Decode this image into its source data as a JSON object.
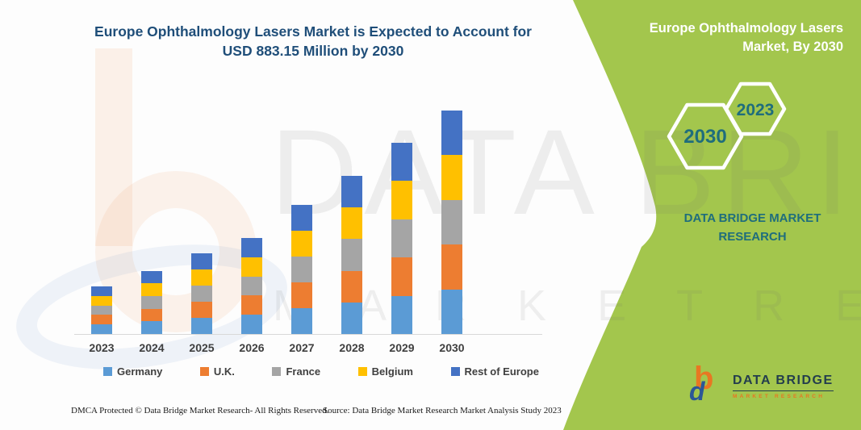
{
  "header": {
    "title_line1": "Europe Ophthalmology Lasers Market is Expected to Account for",
    "title_line2": "USD 883.15 Million by 2030"
  },
  "panel": {
    "title": "Europe Ophthalmology Lasers Market, By 2030",
    "hexagon_small": "2023",
    "hexagon_large": "2030",
    "brand_text": "DATA BRIDGE MARKET RESEARCH",
    "background_color": "#A3C64D",
    "hexagon_text_color": "#1F6D7C"
  },
  "watermark": {
    "line1": "DATA BRIDGE",
    "line2": "M A R K E T   R E S E A R C H"
  },
  "logo": {
    "name": "DATA BRIDGE",
    "subtitle": "MARKET RESEARCH",
    "glyph_b": "b",
    "glyph_d": "d"
  },
  "footer": {
    "left": "DMCA Protected © Data Bridge Market Research-  All Rights Reserved.",
    "right": "Source: Data Bridge Market Research  Market Analysis Study 2023"
  },
  "chart_data": {
    "type": "bar",
    "stacked": true,
    "title": "Europe Ophthalmology Lasers Market is Expected to Account for USD 883.15 Million by 2030",
    "unit": "USD Million",
    "xlabel": "",
    "ylabel": "",
    "ylim": [
      0,
      900
    ],
    "grid": false,
    "legend_position": "bottom",
    "categories": [
      "2023",
      "2024",
      "2025",
      "2026",
      "2027",
      "2028",
      "2029",
      "2030"
    ],
    "series": [
      {
        "name": "Germany",
        "color": "#5B9BD5",
        "values": [
          37.5,
          50,
          64,
          76,
          102,
          125,
          151,
          176.63
        ]
      },
      {
        "name": "U.K.",
        "color": "#ED7D31",
        "values": [
          37.5,
          50,
          64,
          76,
          102,
          125,
          151,
          176.63
        ]
      },
      {
        "name": "France",
        "color": "#A5A5A5",
        "values": [
          37.5,
          50,
          64,
          76,
          102,
          125,
          151,
          176.63
        ]
      },
      {
        "name": "Belgium",
        "color": "#FFC000",
        "values": [
          37.5,
          50,
          64,
          76,
          102,
          125,
          151,
          176.63
        ]
      },
      {
        "name": "Rest of Europe",
        "color": "#4472C4",
        "values": [
          37.5,
          50,
          64,
          76,
          102,
          125,
          151,
          176.63
        ]
      }
    ],
    "totals": [
      187.5,
      250,
      320,
      380,
      510,
      625,
      755,
      883.15
    ]
  }
}
